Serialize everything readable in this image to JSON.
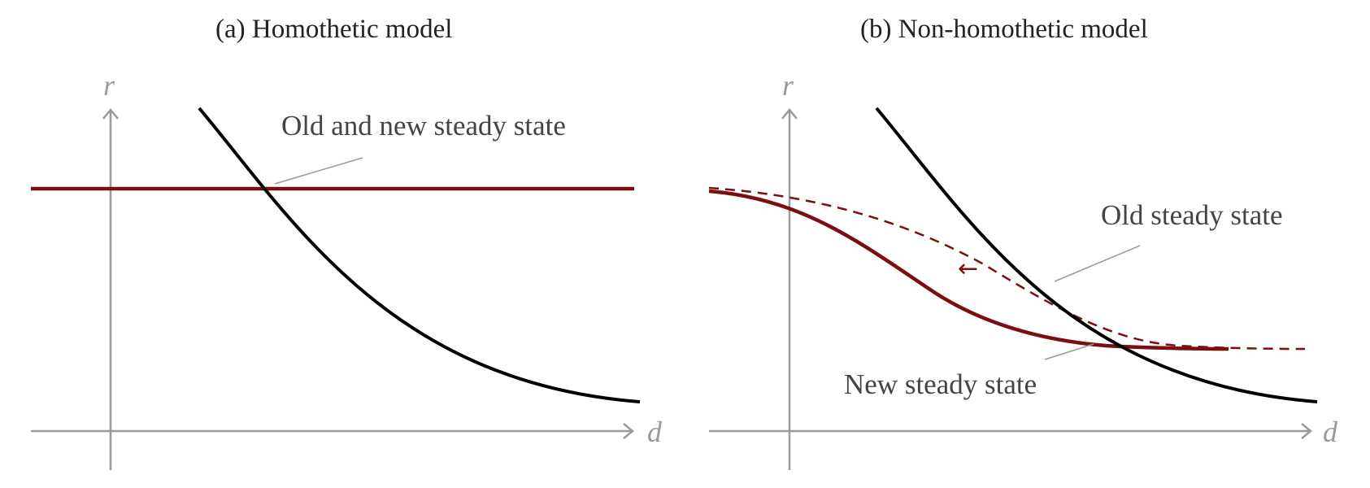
{
  "titles": {
    "a": "(a) Homothetic model",
    "b": "(b) Non-homothetic model"
  },
  "axes": {
    "y_label": "r",
    "x_label": "d"
  },
  "annotations": {
    "a_steady_state": "Old and new steady state",
    "b_old": "Old steady state",
    "b_new": "New steady state",
    "b_shift_arrow": "←"
  },
  "colors": {
    "axis": "#9a9a9a",
    "demand": "#000000",
    "supply": "#7a0f0f",
    "leader": "#9a9a9a"
  }
}
